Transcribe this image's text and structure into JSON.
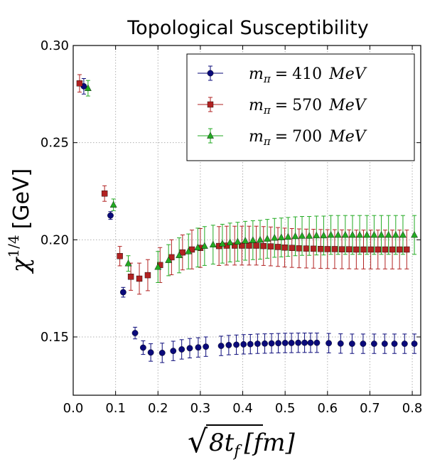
{
  "chart_data": {
    "type": "scatter",
    "title": "Topological Susceptibility",
    "xlabel": "8t_f [fm]",
    "xlabel_parts": {
      "root": "√",
      "radicand": "8t",
      "sub": "f",
      "unit": "[fm]"
    },
    "ylabel": "χ^{1/4} [GeV]",
    "ylabel_parts": {
      "chi": "χ",
      "exp": "1/4",
      "unit": "[GeV]"
    },
    "xlim": [
      0.0,
      0.82
    ],
    "ylim": [
      0.12,
      0.3
    ],
    "xticks": [
      "0.0",
      "0.1",
      "0.2",
      "0.3",
      "0.4",
      "0.5",
      "0.6",
      "0.7",
      "0.8"
    ],
    "yticks": [
      "0.15",
      "0.20",
      "0.25",
      "0.30"
    ],
    "grid": true,
    "legend_position": "top-right",
    "series": [
      {
        "name": "m_π = 410 MeV",
        "legend_parts": {
          "m": "m",
          "sub": "π",
          "eq": "=",
          "num": "410",
          "unit": "MeV"
        },
        "color": "#0a0a7a",
        "marker": "circle",
        "points": [
          {
            "x": 0.025,
            "y": 0.279,
            "e": 0.004
          },
          {
            "x": 0.088,
            "y": 0.2125,
            "e": 0.002
          },
          {
            "x": 0.118,
            "y": 0.173,
            "e": 0.0025
          },
          {
            "x": 0.146,
            "y": 0.152,
            "e": 0.003
          },
          {
            "x": 0.165,
            "y": 0.1445,
            "e": 0.0035
          },
          {
            "x": 0.183,
            "y": 0.142,
            "e": 0.0045
          },
          {
            "x": 0.21,
            "y": 0.1418,
            "e": 0.005
          },
          {
            "x": 0.236,
            "y": 0.1428,
            "e": 0.005
          },
          {
            "x": 0.256,
            "y": 0.1436,
            "e": 0.005
          },
          {
            "x": 0.275,
            "y": 0.1442,
            "e": 0.005
          },
          {
            "x": 0.295,
            "y": 0.1446,
            "e": 0.005
          },
          {
            "x": 0.313,
            "y": 0.145,
            "e": 0.005
          },
          {
            "x": 0.349,
            "y": 0.1454,
            "e": 0.005
          },
          {
            "x": 0.367,
            "y": 0.1458,
            "e": 0.005
          },
          {
            "x": 0.385,
            "y": 0.146,
            "e": 0.005
          },
          {
            "x": 0.402,
            "y": 0.1462,
            "e": 0.005
          },
          {
            "x": 0.418,
            "y": 0.1463,
            "e": 0.005
          },
          {
            "x": 0.435,
            "y": 0.1465,
            "e": 0.005
          },
          {
            "x": 0.452,
            "y": 0.1466,
            "e": 0.005
          },
          {
            "x": 0.468,
            "y": 0.1467,
            "e": 0.005
          },
          {
            "x": 0.484,
            "y": 0.1468,
            "e": 0.005
          },
          {
            "x": 0.5,
            "y": 0.1469,
            "e": 0.005
          },
          {
            "x": 0.515,
            "y": 0.1469,
            "e": 0.005
          },
          {
            "x": 0.531,
            "y": 0.147,
            "e": 0.005
          },
          {
            "x": 0.546,
            "y": 0.147,
            "e": 0.005
          },
          {
            "x": 0.56,
            "y": 0.147,
            "e": 0.005
          },
          {
            "x": 0.575,
            "y": 0.147,
            "e": 0.005
          },
          {
            "x": 0.603,
            "y": 0.1468,
            "e": 0.005
          },
          {
            "x": 0.631,
            "y": 0.1466,
            "e": 0.005
          },
          {
            "x": 0.658,
            "y": 0.1465,
            "e": 0.005
          },
          {
            "x": 0.684,
            "y": 0.1465,
            "e": 0.005
          },
          {
            "x": 0.71,
            "y": 0.1465,
            "e": 0.005
          },
          {
            "x": 0.735,
            "y": 0.1465,
            "e": 0.005
          },
          {
            "x": 0.758,
            "y": 0.1465,
            "e": 0.005
          },
          {
            "x": 0.782,
            "y": 0.1465,
            "e": 0.005
          },
          {
            "x": 0.805,
            "y": 0.1465,
            "e": 0.005
          }
        ]
      },
      {
        "name": "m_π = 570 MeV",
        "legend_parts": {
          "m": "m",
          "sub": "π",
          "eq": "=",
          "num": "570",
          "unit": "MeV"
        },
        "color": "#b22222",
        "marker": "square",
        "points": [
          {
            "x": 0.015,
            "y": 0.2805,
            "e": 0.0045
          },
          {
            "x": 0.074,
            "y": 0.2238,
            "e": 0.004
          },
          {
            "x": 0.11,
            "y": 0.1916,
            "e": 0.005
          },
          {
            "x": 0.136,
            "y": 0.181,
            "e": 0.007
          },
          {
            "x": 0.156,
            "y": 0.18,
            "e": 0.008
          },
          {
            "x": 0.176,
            "y": 0.1818,
            "e": 0.008
          },
          {
            "x": 0.205,
            "y": 0.187,
            "e": 0.009
          },
          {
            "x": 0.232,
            "y": 0.191,
            "e": 0.009
          },
          {
            "x": 0.258,
            "y": 0.1935,
            "e": 0.009
          },
          {
            "x": 0.28,
            "y": 0.195,
            "e": 0.01
          },
          {
            "x": 0.3,
            "y": 0.1958,
            "e": 0.01
          },
          {
            "x": 0.344,
            "y": 0.1968,
            "e": 0.01
          },
          {
            "x": 0.362,
            "y": 0.197,
            "e": 0.01
          },
          {
            "x": 0.381,
            "y": 0.197,
            "e": 0.01
          },
          {
            "x": 0.398,
            "y": 0.197,
            "e": 0.01
          },
          {
            "x": 0.415,
            "y": 0.197,
            "e": 0.01
          },
          {
            "x": 0.432,
            "y": 0.197,
            "e": 0.01
          },
          {
            "x": 0.449,
            "y": 0.1968,
            "e": 0.01
          },
          {
            "x": 0.466,
            "y": 0.1966,
            "e": 0.01
          },
          {
            "x": 0.483,
            "y": 0.1963,
            "e": 0.01
          },
          {
            "x": 0.499,
            "y": 0.196,
            "e": 0.01
          },
          {
            "x": 0.516,
            "y": 0.1958,
            "e": 0.01
          },
          {
            "x": 0.533,
            "y": 0.1956,
            "e": 0.01
          },
          {
            "x": 0.55,
            "y": 0.1955,
            "e": 0.01
          },
          {
            "x": 0.567,
            "y": 0.1954,
            "e": 0.01
          },
          {
            "x": 0.584,
            "y": 0.1953,
            "e": 0.01
          },
          {
            "x": 0.6,
            "y": 0.1952,
            "e": 0.01
          },
          {
            "x": 0.617,
            "y": 0.1952,
            "e": 0.01
          },
          {
            "x": 0.634,
            "y": 0.1951,
            "e": 0.01
          },
          {
            "x": 0.651,
            "y": 0.1951,
            "e": 0.01
          },
          {
            "x": 0.668,
            "y": 0.195,
            "e": 0.01
          },
          {
            "x": 0.685,
            "y": 0.195,
            "e": 0.01
          },
          {
            "x": 0.702,
            "y": 0.195,
            "e": 0.01
          },
          {
            "x": 0.719,
            "y": 0.195,
            "e": 0.01
          },
          {
            "x": 0.736,
            "y": 0.195,
            "e": 0.01
          },
          {
            "x": 0.753,
            "y": 0.195,
            "e": 0.01
          },
          {
            "x": 0.77,
            "y": 0.195,
            "e": 0.01
          },
          {
            "x": 0.787,
            "y": 0.195,
            "e": 0.01
          }
        ]
      },
      {
        "name": "m_π = 700 MeV",
        "legend_parts": {
          "m": "m",
          "sub": "π",
          "eq": "=",
          "num": "700",
          "unit": "MeV"
        },
        "color": "#22aa22",
        "marker": "triangle",
        "points": [
          {
            "x": 0.035,
            "y": 0.278,
            "e": 0.004
          },
          {
            "x": 0.095,
            "y": 0.218,
            "e": 0.003
          },
          {
            "x": 0.13,
            "y": 0.1878,
            "e": 0.004
          },
          {
            "x": 0.2,
            "y": 0.186,
            "e": 0.008
          },
          {
            "x": 0.225,
            "y": 0.1895,
            "e": 0.008
          },
          {
            "x": 0.25,
            "y": 0.192,
            "e": 0.009
          },
          {
            "x": 0.272,
            "y": 0.194,
            "e": 0.009
          },
          {
            "x": 0.294,
            "y": 0.196,
            "e": 0.01
          },
          {
            "x": 0.31,
            "y": 0.1968,
            "e": 0.01
          },
          {
            "x": 0.33,
            "y": 0.1975,
            "e": 0.01
          },
          {
            "x": 0.352,
            "y": 0.198,
            "e": 0.01
          },
          {
            "x": 0.37,
            "y": 0.1986,
            "e": 0.01
          },
          {
            "x": 0.388,
            "y": 0.199,
            "e": 0.01
          },
          {
            "x": 0.406,
            "y": 0.1995,
            "e": 0.01
          },
          {
            "x": 0.424,
            "y": 0.1998,
            "e": 0.01
          },
          {
            "x": 0.441,
            "y": 0.2,
            "e": 0.01
          },
          {
            "x": 0.458,
            "y": 0.2005,
            "e": 0.01
          },
          {
            "x": 0.475,
            "y": 0.201,
            "e": 0.01
          },
          {
            "x": 0.491,
            "y": 0.2012,
            "e": 0.01
          },
          {
            "x": 0.507,
            "y": 0.2015,
            "e": 0.01
          },
          {
            "x": 0.524,
            "y": 0.2018,
            "e": 0.01
          },
          {
            "x": 0.54,
            "y": 0.202,
            "e": 0.01
          },
          {
            "x": 0.557,
            "y": 0.202,
            "e": 0.01
          },
          {
            "x": 0.574,
            "y": 0.2022,
            "e": 0.01
          },
          {
            "x": 0.591,
            "y": 0.2022,
            "e": 0.01
          },
          {
            "x": 0.608,
            "y": 0.2025,
            "e": 0.01
          },
          {
            "x": 0.625,
            "y": 0.2025,
            "e": 0.01
          },
          {
            "x": 0.642,
            "y": 0.2025,
            "e": 0.01
          },
          {
            "x": 0.659,
            "y": 0.2025,
            "e": 0.01
          },
          {
            "x": 0.676,
            "y": 0.2025,
            "e": 0.01
          },
          {
            "x": 0.693,
            "y": 0.2025,
            "e": 0.01
          },
          {
            "x": 0.71,
            "y": 0.2025,
            "e": 0.01
          },
          {
            "x": 0.727,
            "y": 0.2025,
            "e": 0.01
          },
          {
            "x": 0.744,
            "y": 0.2025,
            "e": 0.01
          },
          {
            "x": 0.761,
            "y": 0.2025,
            "e": 0.01
          },
          {
            "x": 0.778,
            "y": 0.2025,
            "e": 0.01
          },
          {
            "x": 0.805,
            "y": 0.2025,
            "e": 0.01
          }
        ]
      }
    ]
  }
}
